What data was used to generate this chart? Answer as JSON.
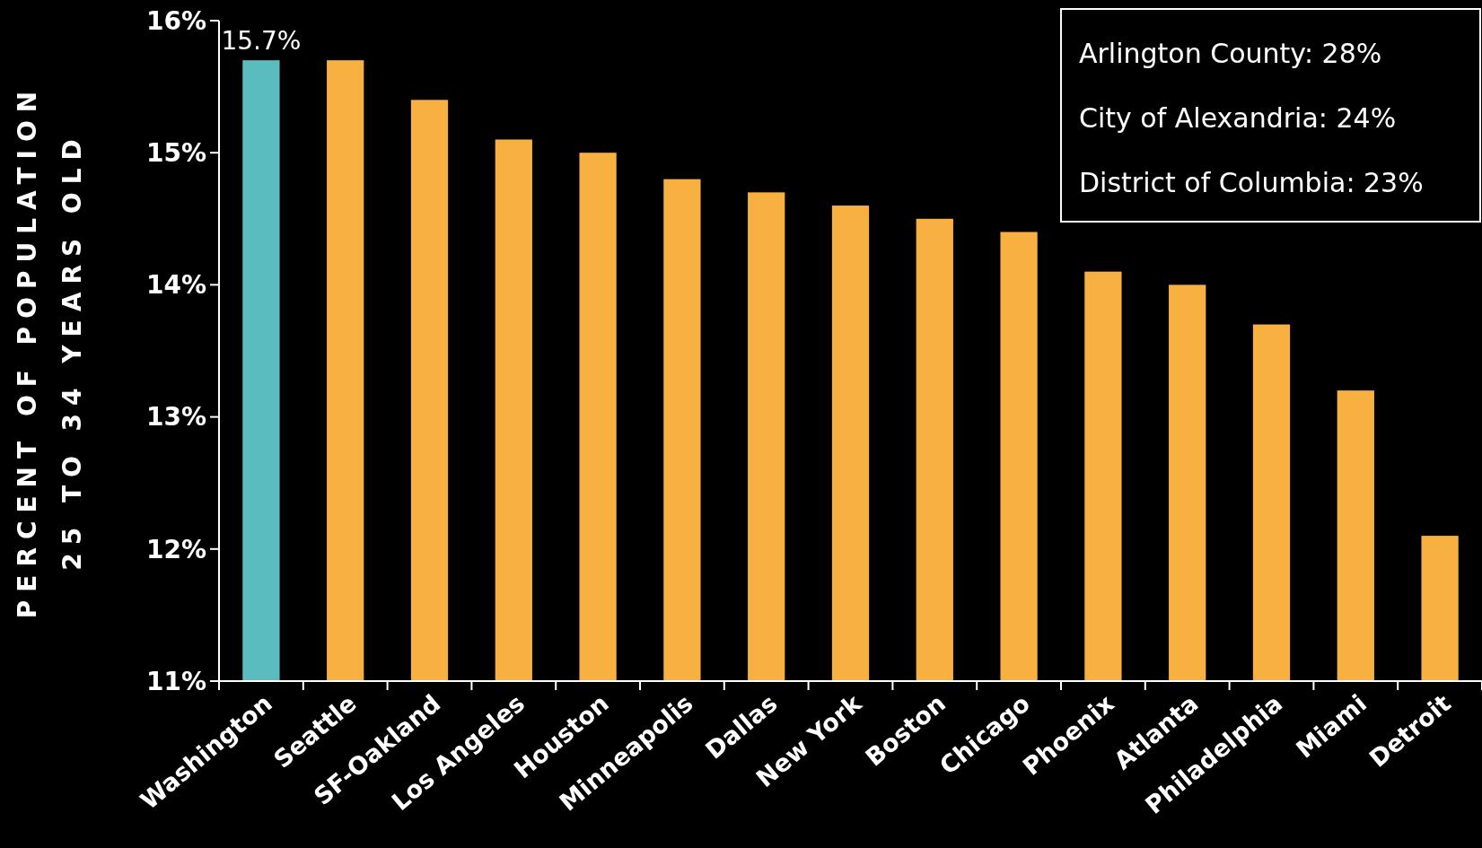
{
  "chart_data": {
    "type": "bar",
    "ylabel": "PERCENT OF POPULATION\n25 TO 34 YEARS OLD",
    "categories": [
      "Washington",
      "Seattle",
      "SF-Oakland",
      "Los Angeles",
      "Houston",
      "Minneapolis",
      "Dallas",
      "New York",
      "Boston",
      "Chicago",
      "Phoenix",
      "Atlanta",
      "Philadelphia",
      "Miami",
      "Detroit"
    ],
    "values": [
      15.7,
      15.7,
      15.4,
      15.1,
      15.0,
      14.8,
      14.7,
      14.6,
      14.5,
      14.4,
      14.1,
      14.0,
      13.7,
      13.2,
      12.1
    ],
    "colors": [
      "#5bbcbf",
      "#f8b040",
      "#f8b040",
      "#f8b040",
      "#f8b040",
      "#f8b040",
      "#f8b040",
      "#f8b040",
      "#f8b040",
      "#f8b040",
      "#f8b040",
      "#f8b040",
      "#f8b040",
      "#f8b040",
      "#f8b040"
    ],
    "value_labels": [
      "15.7%",
      null,
      null,
      null,
      null,
      null,
      null,
      null,
      null,
      null,
      null,
      null,
      null,
      null,
      null
    ],
    "ylim": [
      11,
      16
    ],
    "yticks": [
      {
        "value": 11,
        "label": "11%"
      },
      {
        "value": 12,
        "label": "12%"
      },
      {
        "value": 13,
        "label": "13%"
      },
      {
        "value": 14,
        "label": "14%"
      },
      {
        "value": 15,
        "label": "15%"
      },
      {
        "value": 16,
        "label": "16%"
      }
    ],
    "annotations": [
      "Arlington County: 28%",
      "City of Alexandria: 24%",
      "District of Columbia: 23%"
    ]
  }
}
